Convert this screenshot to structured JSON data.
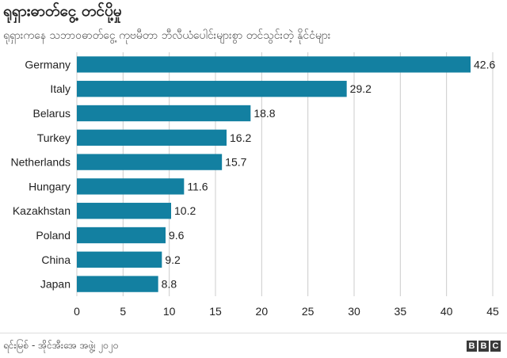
{
  "header": {
    "title": "ရုရှားဓာတ်ငွေ့ တင်ပို့မှု",
    "subtitle": "ရုရှားကနေ သဘာဝဓာတ်ငွေ့ ကုဗမီတာ ဘီလီယံပေါင်းများစွာ တင်သွင်းတဲ့ နိုင်ငံများ"
  },
  "chart_data": {
    "type": "bar",
    "orientation": "horizontal",
    "title": "ရုရှားဓာတ်ငွေ့ တင်ပို့မှု",
    "subtitle": "ရုရှားကနေ သဘာဝဓာတ်ငွေ့ ကုဗမီတာ ဘီလီယံပေါင်းများစွာ တင်သွင်းတဲ့ နိုင်ငံများ",
    "categories": [
      "Germany",
      "Italy",
      "Belarus",
      "Turkey",
      "Netherlands",
      "Hungary",
      "Kazakhstan",
      "Poland",
      "China",
      "Japan"
    ],
    "values": [
      42.6,
      29.2,
      18.8,
      16.2,
      15.7,
      11.6,
      10.2,
      9.6,
      9.2,
      8.8
    ],
    "value_labels": [
      "42.6",
      "29.2",
      "18.8",
      "16.2",
      "15.7",
      "11.6",
      "10.2",
      "9.6",
      "9.2",
      "8.8"
    ],
    "xlim": [
      0,
      45
    ],
    "xticks": [
      0,
      5,
      10,
      15,
      20,
      25,
      30,
      35,
      40,
      45
    ],
    "xtick_labels": [
      "0",
      "5",
      "10",
      "15",
      "20",
      "25",
      "30",
      "35",
      "40",
      "45"
    ],
    "grid": "vertical",
    "legend": "none",
    "bar_color": "#1380a1",
    "grid_color": "#cccccc"
  },
  "footer": {
    "source": "ရင်းမြစ် - အိုင်အီးအေ အဖွဲ့၊ ၂၀၂၀",
    "logo_letters": [
      "B",
      "B",
      "C"
    ]
  }
}
